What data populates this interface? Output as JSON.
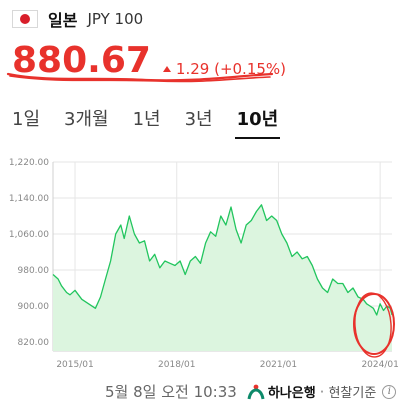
{
  "header": {
    "flag_icon": "japan-flag-icon",
    "country": "일본",
    "code": "JPY 100"
  },
  "quote": {
    "price": "880.67",
    "change": "1.29 (+0.15%)",
    "direction": "up",
    "accent_color": "#e8322c"
  },
  "tabs": [
    {
      "label": "1일",
      "active": false
    },
    {
      "label": "3개월",
      "active": false
    },
    {
      "label": "1년",
      "active": false
    },
    {
      "label": "3년",
      "active": false
    },
    {
      "label": "10년",
      "active": true
    }
  ],
  "chart_data": {
    "type": "area",
    "ylim": [
      800,
      1220
    ],
    "yticks": [
      "1,220.00",
      "1,140.00",
      "1,060.00",
      "980.00",
      "900.00",
      "820.00"
    ],
    "ytick_values": [
      1220,
      1140,
      1060,
      980,
      900,
      820
    ],
    "xticks": [
      "2015/01",
      "2018/01",
      "2021/01",
      "2024/01"
    ],
    "xtick_values": [
      2015.0,
      2018.0,
      2021.0,
      2024.0
    ],
    "xlim": [
      2014.35,
      2024.35
    ],
    "line_color": "#22c55e",
    "fill_color": "#dcf5df",
    "grid": true,
    "series": [
      {
        "x": [
          2014.35,
          2014.5,
          2014.6,
          2014.75,
          2014.85,
          2015.0,
          2015.2,
          2015.4,
          2015.6,
          2015.75,
          2015.9,
          2016.05,
          2016.2,
          2016.35,
          2016.45,
          2016.6,
          2016.75,
          2016.9,
          2017.05,
          2017.2,
          2017.35,
          2017.5,
          2017.65,
          2017.8,
          2017.95,
          2018.1,
          2018.25,
          2018.4,
          2018.55,
          2018.7,
          2018.85,
          2019.0,
          2019.15,
          2019.3,
          2019.45,
          2019.6,
          2019.75,
          2019.9,
          2020.05,
          2020.2,
          2020.35,
          2020.5,
          2020.65,
          2020.8,
          2020.95,
          2021.1,
          2021.25,
          2021.4,
          2021.55,
          2021.7,
          2021.85,
          2022.0,
          2022.15,
          2022.3,
          2022.45,
          2022.6,
          2022.75,
          2022.9,
          2023.05,
          2023.2,
          2023.35,
          2023.5,
          2023.6,
          2023.7,
          2023.8,
          2023.9,
          2024.0,
          2024.1,
          2024.2,
          2024.3,
          2024.35
        ],
        "y": [
          970,
          960,
          945,
          930,
          925,
          935,
          915,
          905,
          895,
          920,
          960,
          1000,
          1060,
          1080,
          1050,
          1100,
          1060,
          1040,
          1045,
          1000,
          1015,
          985,
          1000,
          995,
          990,
          1000,
          970,
          1000,
          1010,
          995,
          1040,
          1065,
          1055,
          1100,
          1080,
          1120,
          1070,
          1040,
          1080,
          1090,
          1110,
          1125,
          1090,
          1100,
          1090,
          1060,
          1040,
          1010,
          1020,
          1005,
          1010,
          990,
          960,
          940,
          930,
          960,
          950,
          950,
          930,
          940,
          920,
          915,
          905,
          900,
          895,
          880,
          905,
          890,
          900,
          895,
          880
        ]
      }
    ]
  },
  "footer": {
    "timestamp": "5월 8일 오전 10:33",
    "bank_icon": "hana-bank-logo-icon",
    "bank": "하나은행",
    "separator": "·",
    "note": "현찰기준",
    "info_icon": "info-icon"
  }
}
